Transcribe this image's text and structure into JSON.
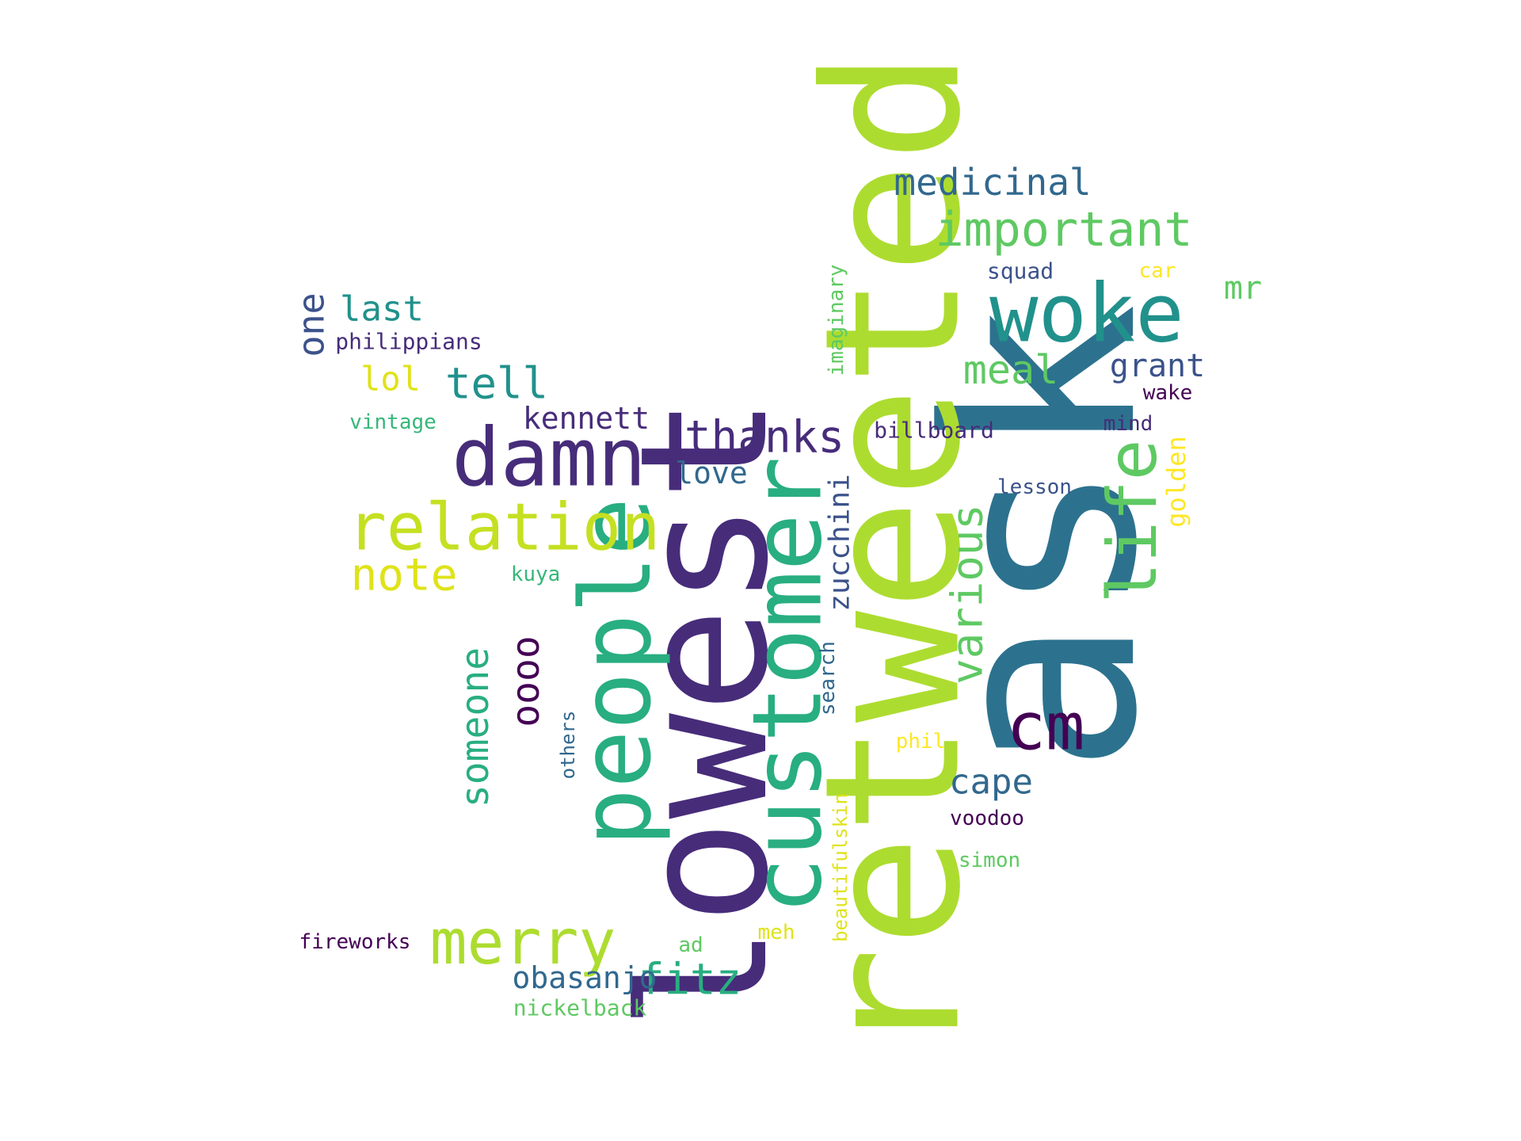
{
  "palette": {
    "dark_purple": "#440154",
    "indigo": "#472c7a",
    "slate_blue": "#3b528b",
    "steel_blue": "#2c728e",
    "teal": "#21918c",
    "sea_green": "#28ae80",
    "green": "#5ec962",
    "yellow_green": "#addc30",
    "yellow": "#fde725",
    "lime": "#c5e021"
  },
  "words": [
    {
      "text": "ask",
      "color": "#2c728e"
    },
    {
      "text": "retweeted",
      "color": "#addc30"
    },
    {
      "text": "lowest",
      "color": "#472c7a"
    },
    {
      "text": "customer",
      "color": "#28ae80"
    },
    {
      "text": "people",
      "color": "#28ae80"
    },
    {
      "text": "damn",
      "color": "#472c7a"
    },
    {
      "text": "woke",
      "color": "#21918c"
    },
    {
      "text": "relation",
      "color": "#c5e021"
    },
    {
      "text": "merry",
      "color": "#addc30"
    },
    {
      "text": "life",
      "color": "#5ec962"
    },
    {
      "text": "cm",
      "color": "#440154"
    },
    {
      "text": "important",
      "color": "#5ec962"
    },
    {
      "text": "thanks",
      "color": "#472c7a"
    },
    {
      "text": "note",
      "color": "#dfe318"
    },
    {
      "text": "various",
      "color": "#5ec962"
    },
    {
      "text": "someone",
      "color": "#28ae80"
    },
    {
      "text": "fitz",
      "color": "#28ae80"
    },
    {
      "text": "tell",
      "color": "#21918c"
    },
    {
      "text": "oooo",
      "color": "#440154"
    },
    {
      "text": "medicinal",
      "color": "#31688e"
    },
    {
      "text": "meal",
      "color": "#5ec962"
    },
    {
      "text": "one",
      "color": "#3b528b"
    },
    {
      "text": "zucchini",
      "color": "#3b528b"
    },
    {
      "text": "last",
      "color": "#21918c"
    },
    {
      "text": "cape",
      "color": "#31688e"
    },
    {
      "text": "grant",
      "color": "#3b528b"
    },
    {
      "text": "obasanjo",
      "color": "#31688e"
    },
    {
      "text": "kennett",
      "color": "#472c7a"
    },
    {
      "text": "lol",
      "color": "#dfe318"
    },
    {
      "text": "love",
      "color": "#31688e"
    },
    {
      "text": "mr",
      "color": "#5ec962"
    },
    {
      "text": "golden",
      "color": "#fde725"
    },
    {
      "text": "imaginary",
      "color": "#5ec962"
    },
    {
      "text": "squad",
      "color": "#3b528b"
    },
    {
      "text": "car",
      "color": "#fde725"
    },
    {
      "text": "philippians",
      "color": "#472c7a"
    },
    {
      "text": "vintage",
      "color": "#35b779"
    },
    {
      "text": "billboard",
      "color": "#472c7a"
    },
    {
      "text": "mind",
      "color": "#472c7a"
    },
    {
      "text": "wake",
      "color": "#440154"
    },
    {
      "text": "lesson",
      "color": "#3b528b"
    },
    {
      "text": "kuya",
      "color": "#35b779"
    },
    {
      "text": "search",
      "color": "#31688e"
    },
    {
      "text": "others",
      "color": "#31688e"
    },
    {
      "text": "phil",
      "color": "#fde725"
    },
    {
      "text": "voodoo",
      "color": "#440154"
    },
    {
      "text": "beautifulskin",
      "color": "#dfe318"
    },
    {
      "text": "simon",
      "color": "#5ec962"
    },
    {
      "text": "fireworks",
      "color": "#440154"
    },
    {
      "text": "ad",
      "color": "#5ec962"
    },
    {
      "text": "meh",
      "color": "#dfe318"
    },
    {
      "text": "nickelback",
      "color": "#5ec962"
    }
  ]
}
